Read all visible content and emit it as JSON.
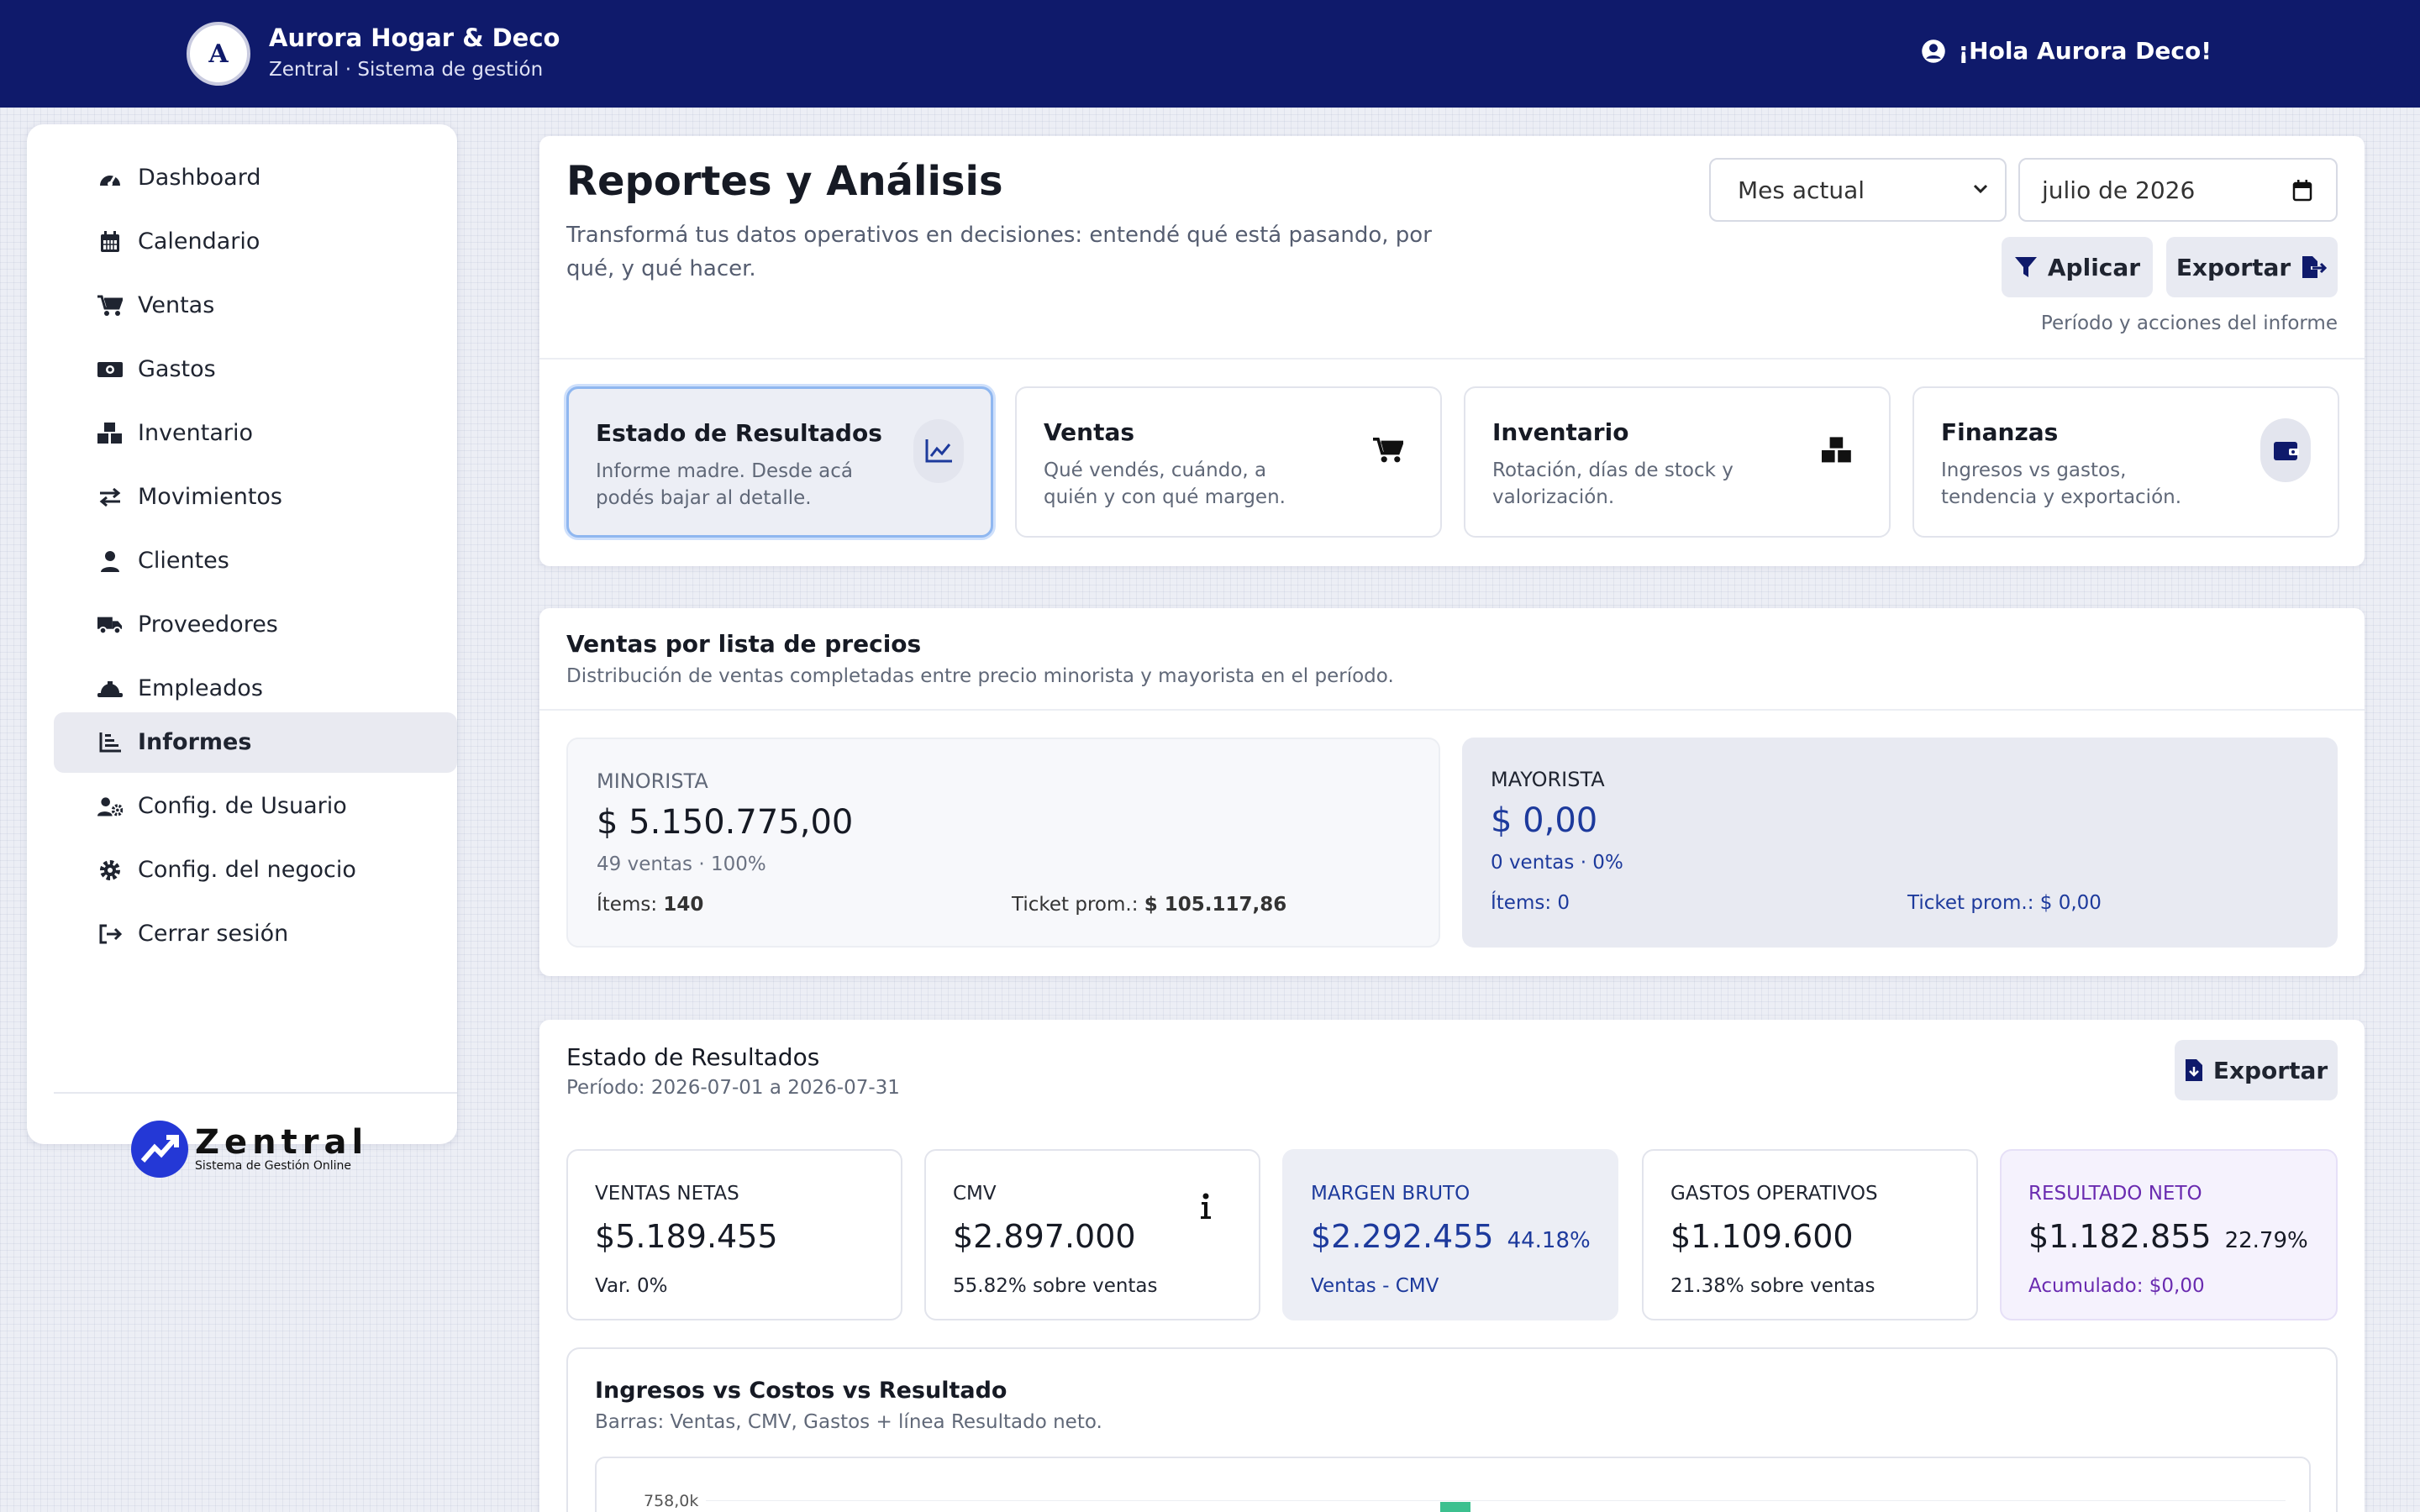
{
  "header": {
    "logo_letter": "A",
    "business_name": "Aurora Hogar & Deco",
    "system_name": "Zentral · Sistema de gestión",
    "greeting": "¡Hola Aurora Deco!"
  },
  "sidebar": {
    "items": [
      {
        "label": "Dashboard",
        "icon": "gauge-icon"
      },
      {
        "label": "Calendario",
        "icon": "calendar-icon"
      },
      {
        "label": "Ventas",
        "icon": "cart-icon"
      },
      {
        "label": "Gastos",
        "icon": "money-icon"
      },
      {
        "label": "Inventario",
        "icon": "boxes-icon"
      },
      {
        "label": "Movimientos",
        "icon": "arrows-icon"
      },
      {
        "label": "Clientes",
        "icon": "user-icon"
      },
      {
        "label": "Proveedores",
        "icon": "truck-icon"
      },
      {
        "label": "Empleados",
        "icon": "hardhat-icon"
      },
      {
        "label": "Informes",
        "icon": "chart-icon",
        "active": true
      },
      {
        "label": "Config. de Usuario",
        "icon": "user-gear-icon"
      },
      {
        "label": "Config. del negocio",
        "icon": "gear-icon"
      },
      {
        "label": "Cerrar sesión",
        "icon": "logout-icon"
      }
    ],
    "footer_logo": {
      "word": "Zentral",
      "tagline": "Sistema de Gestión Online"
    }
  },
  "page": {
    "title": "Reportes y Análisis",
    "subtitle": "Transformá tus datos operativos en decisiones: entendé qué está pasando, por qué, y qué hacer.",
    "period_select": "Mes actual",
    "month_value": "julio de 2026",
    "apply_label": "Aplicar",
    "export_label": "Exportar",
    "actions_caption": "Período y acciones del informe"
  },
  "reports": [
    {
      "title": "Estado de Resultados",
      "desc": "Informe madre. Desde acá podés bajar al detalle.",
      "icon": "line-chart-icon"
    },
    {
      "title": "Ventas",
      "desc": "Qué vendés, cuándo, a quién y con qué margen.",
      "icon": "cart-icon"
    },
    {
      "title": "Inventario",
      "desc": "Rotación, días de stock y valorización.",
      "icon": "boxes-icon"
    },
    {
      "title": "Finanzas",
      "desc": "Ingresos vs gastos, tendencia y exportación.",
      "icon": "wallet-icon"
    }
  ],
  "price_lists": {
    "title": "Ventas por lista de precios",
    "subtitle": "Distribución de ventas completadas entre precio minorista y mayorista en el período.",
    "retail": {
      "label": "MINORISTA",
      "value": "$ 5.150.775,00",
      "meta": "49 ventas · 100%",
      "items_label": "Ítems:",
      "items": "140",
      "ticket_label": "Ticket prom.:",
      "ticket": "$ 105.117,86"
    },
    "wholesale": {
      "label": "MAYORISTA",
      "value": "$ 0,00",
      "meta": "0 ventas · 0%",
      "items_label": "Ítems:",
      "items": "0",
      "ticket_label": "Ticket prom.:",
      "ticket": "$ 0,00"
    }
  },
  "income": {
    "title": "Estado de Resultados",
    "period": "Período: 2026-07-01 a 2026-07-31",
    "export_label": "Exportar",
    "kpis": [
      {
        "label": "VENTAS NETAS",
        "value": "$5.189.455",
        "pct": "",
        "foot": "Var. 0%"
      },
      {
        "label": "CMV",
        "value": "$2.897.000",
        "pct": "",
        "foot": "55.82% sobre ventas"
      },
      {
        "label": "MARGEN BRUTO",
        "value": "$2.292.455",
        "pct": "44.18%",
        "foot": "Ventas - CMV"
      },
      {
        "label": "GASTOS OPERATIVOS",
        "value": "$1.109.600",
        "pct": "",
        "foot": "21.38% sobre ventas"
      },
      {
        "label": "RESULTADO NETO",
        "value": "$1.182.855",
        "pct": "22.79%",
        "foot": "Acumulado: $0,00"
      }
    ]
  },
  "chart": {
    "title": "Ingresos vs Costos vs Resultado",
    "subtitle": "Barras: Ventas, CMV, Gastos + línea Resultado neto.",
    "y_tick_top": "758,0k",
    "accent": "#3cc08f"
  },
  "colors": {
    "header_bg": "#0f1a6b",
    "accent_blue": "#1d3a9c",
    "accent_purple": "#6a2bb0"
  }
}
